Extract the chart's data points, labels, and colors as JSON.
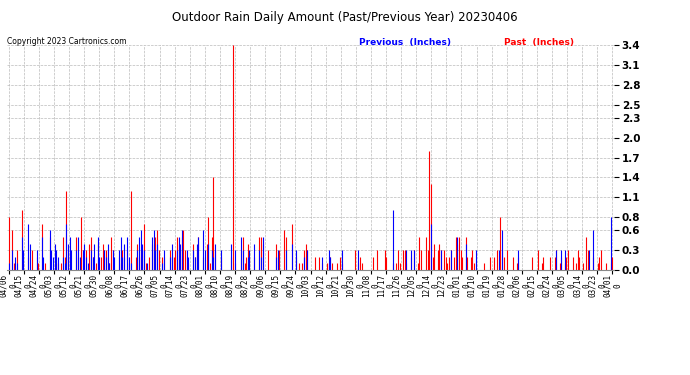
{
  "title": "Outdoor Rain Daily Amount (Past/Previous Year) 20230406",
  "copyright": "Copyright 2023 Cartronics.com",
  "legend_previous": "Previous  (Inches)",
  "legend_past": "Past  (Inches)",
  "yticks": [
    0.0,
    0.3,
    0.6,
    0.8,
    1.1,
    1.4,
    1.7,
    2.0,
    2.3,
    2.5,
    2.8,
    3.1,
    3.4
  ],
  "background_color": "#ffffff",
  "grid_color": "#bbbbbb",
  "previous_color": "#0000ff",
  "past_color": "#ff0000",
  "title_color": "#000000",
  "copyright_color": "#000000",
  "xlabels": [
    "04/06",
    "04/15",
    "04/24",
    "05/03",
    "05/12",
    "05/21",
    "05/30",
    "06/08",
    "06/17",
    "06/26",
    "07/05",
    "07/14",
    "07/23",
    "08/01",
    "08/10",
    "08/19",
    "08/28",
    "09/06",
    "09/15",
    "09/24",
    "10/03",
    "10/12",
    "10/21",
    "10/30",
    "11/08",
    "11/17",
    "11/26",
    "12/05",
    "12/14",
    "12/23",
    "01/01",
    "01/10",
    "01/19",
    "01/28",
    "02/06",
    "02/15",
    "02/24",
    "03/05",
    "03/14",
    "03/23",
    "04/01"
  ],
  "past_data": [
    0.8,
    0.0,
    0.6,
    0.1,
    0.0,
    0.3,
    0.0,
    0.0,
    0.9,
    0.1,
    0.0,
    0.0,
    0.2,
    0.0,
    0.3,
    0.0,
    0.0,
    0.2,
    0.1,
    0.0,
    0.7,
    0.0,
    0.1,
    0.0,
    0.0,
    0.5,
    0.0,
    0.0,
    0.0,
    0.1,
    0.1,
    0.0,
    0.1,
    0.5,
    0.2,
    1.2,
    0.3,
    0.2,
    0.0,
    0.0,
    0.0,
    0.5,
    0.2,
    0.0,
    0.8,
    0.3,
    0.0,
    0.3,
    0.0,
    0.4,
    0.5,
    0.2,
    0.0,
    0.1,
    0.4,
    0.0,
    0.2,
    0.4,
    0.3,
    0.3,
    0.2,
    0.1,
    0.5,
    0.3,
    0.0,
    0.0,
    0.0,
    0.2,
    0.1,
    0.3,
    0.2,
    0.0,
    0.3,
    0.1,
    1.2,
    0.0,
    0.0,
    0.2,
    0.4,
    0.2,
    0.3,
    0.3,
    0.7,
    0.1,
    0.0,
    0.2,
    0.0,
    0.4,
    0.3,
    0.5,
    0.6,
    0.3,
    0.0,
    0.2,
    0.2,
    0.0,
    0.0,
    0.0,
    0.3,
    0.2,
    0.2,
    0.3,
    0.5,
    0.4,
    0.3,
    0.5,
    0.6,
    0.3,
    0.2,
    0.1,
    0.0,
    0.0,
    0.4,
    0.2,
    0.3,
    0.5,
    0.0,
    0.0,
    0.2,
    0.0,
    0.4,
    0.8,
    0.1,
    0.5,
    1.4,
    0.3,
    0.0,
    0.0,
    0.0,
    0.2,
    0.0,
    0.0,
    0.0,
    0.0,
    0.0,
    0.2,
    3.4,
    0.1,
    0.0,
    0.0,
    0.0,
    0.3,
    0.5,
    0.1,
    0.2,
    0.4,
    0.2,
    0.0,
    0.0,
    0.2,
    0.0,
    0.0,
    0.5,
    0.5,
    0.4,
    0.0,
    0.0,
    0.3,
    0.0,
    0.0,
    0.0,
    0.0,
    0.4,
    0.2,
    0.3,
    0.0,
    0.0,
    0.6,
    0.5,
    0.0,
    0.0,
    0.0,
    0.7,
    0.0,
    0.2,
    0.0,
    0.1,
    0.0,
    0.1,
    0.3,
    0.4,
    0.3,
    0.0,
    0.0,
    0.0,
    0.0,
    0.2,
    0.0,
    0.2,
    0.0,
    0.1,
    0.0,
    0.0,
    0.1,
    0.1,
    0.2,
    0.1,
    0.0,
    0.0,
    0.1,
    0.0,
    0.2,
    0.1,
    0.0,
    0.0,
    0.0,
    0.0,
    0.0,
    0.0,
    0.0,
    0.3,
    0.0,
    0.1,
    0.2,
    0.1,
    0.0,
    0.0,
    0.0,
    0.0,
    0.0,
    0.0,
    0.2,
    0.0,
    0.3,
    0.0,
    0.0,
    0.0,
    0.0,
    0.3,
    0.2,
    0.0,
    0.0,
    0.0,
    0.1,
    0.0,
    0.1,
    0.3,
    0.1,
    0.0,
    0.3,
    0.3,
    0.1,
    0.0,
    0.0,
    0.2,
    0.0,
    0.3,
    0.0,
    0.1,
    0.5,
    0.3,
    0.0,
    0.0,
    0.5,
    0.3,
    1.8,
    1.3,
    0.2,
    0.4,
    0.0,
    0.3,
    0.4,
    0.3,
    0.0,
    0.3,
    0.2,
    0.1,
    0.2,
    0.3,
    0.0,
    0.2,
    0.5,
    0.4,
    0.5,
    0.3,
    0.2,
    0.0,
    0.5,
    0.2,
    0.0,
    0.2,
    0.3,
    0.1,
    0.0,
    0.0,
    0.0,
    0.0,
    0.0,
    0.1,
    0.0,
    0.0,
    0.0,
    0.2,
    0.0,
    0.2,
    0.0,
    0.3,
    0.0,
    0.8,
    0.3,
    0.2,
    0.0,
    0.3,
    0.0,
    0.0,
    0.0,
    0.2,
    0.0,
    0.1,
    0.2,
    0.0,
    0.0,
    0.0,
    0.0,
    0.0,
    0.0,
    0.0,
    0.2,
    0.0,
    0.0,
    0.0,
    0.3,
    0.0,
    0.1,
    0.2,
    0.0,
    0.0,
    0.0,
    0.2,
    0.0,
    0.0,
    0.2,
    0.3,
    0.0,
    0.1,
    0.2,
    0.0,
    0.1,
    0.2,
    0.3,
    0.0,
    0.0,
    0.2,
    0.0,
    0.1,
    0.3,
    0.2,
    0.0,
    0.1,
    0.0,
    0.5,
    0.3,
    0.0,
    0.0,
    0.2,
    0.0,
    0.0,
    0.1,
    0.2,
    0.3,
    0.0,
    0.0,
    0.1,
    0.0,
    0.0,
    0.1,
    0.2
  ],
  "previous_data": [
    0.1,
    0.0,
    0.3,
    0.0,
    0.2,
    0.1,
    0.0,
    0.0,
    0.5,
    0.3,
    0.0,
    0.0,
    0.7,
    0.4,
    0.0,
    0.0,
    0.0,
    0.3,
    0.0,
    0.0,
    0.5,
    0.2,
    0.0,
    0.0,
    0.0,
    0.6,
    0.3,
    0.2,
    0.4,
    0.3,
    0.2,
    0.0,
    0.0,
    0.2,
    0.1,
    0.7,
    0.4,
    0.5,
    0.3,
    0.0,
    0.0,
    0.3,
    0.5,
    0.2,
    0.0,
    0.3,
    0.4,
    0.2,
    0.1,
    0.0,
    0.3,
    0.2,
    0.4,
    0.0,
    0.5,
    0.2,
    0.0,
    0.0,
    0.3,
    0.2,
    0.4,
    0.1,
    0.0,
    0.3,
    0.2,
    0.0,
    0.0,
    0.3,
    0.5,
    0.2,
    0.4,
    0.0,
    0.5,
    0.2,
    0.1,
    0.0,
    0.0,
    0.0,
    0.3,
    0.5,
    0.6,
    0.4,
    0.3,
    0.0,
    0.1,
    0.0,
    0.0,
    0.5,
    0.6,
    0.3,
    0.4,
    0.0,
    0.0,
    0.1,
    0.3,
    0.0,
    0.0,
    0.0,
    0.2,
    0.4,
    0.0,
    0.0,
    0.3,
    0.5,
    0.4,
    0.6,
    0.0,
    0.0,
    0.3,
    0.2,
    0.0,
    0.0,
    0.3,
    0.2,
    0.4,
    0.5,
    0.0,
    0.0,
    0.6,
    0.3,
    0.0,
    0.4,
    0.0,
    0.3,
    0.2,
    0.4,
    0.0,
    0.0,
    0.0,
    0.3,
    0.0,
    0.0,
    0.0,
    0.0,
    0.0,
    0.4,
    0.0,
    0.3,
    0.0,
    0.0,
    0.0,
    0.5,
    0.3,
    0.0,
    0.0,
    0.2,
    0.3,
    0.0,
    0.0,
    0.4,
    0.0,
    0.0,
    0.3,
    0.2,
    0.5,
    0.0,
    0.0,
    0.0,
    0.0,
    0.0,
    0.0,
    0.0,
    0.2,
    0.3,
    0.0,
    0.0,
    0.0,
    0.0,
    0.3,
    0.0,
    0.0,
    0.0,
    0.4,
    0.0,
    0.3,
    0.0,
    0.0,
    0.0,
    0.0,
    0.2,
    0.0,
    0.3,
    0.0,
    0.0,
    0.0,
    0.0,
    0.0,
    0.0,
    0.0,
    0.0,
    0.2,
    0.0,
    0.0,
    0.0,
    0.3,
    0.2,
    0.0,
    0.0,
    0.0,
    0.0,
    0.0,
    0.0,
    0.3,
    0.0,
    0.0,
    0.0,
    0.0,
    0.0,
    0.0,
    0.0,
    0.0,
    0.0,
    0.3,
    0.0,
    0.0,
    0.0,
    0.0,
    0.0,
    0.0,
    0.0,
    0.0,
    0.0,
    0.0,
    0.0,
    0.0,
    0.0,
    0.0,
    0.0,
    0.0,
    0.0,
    0.0,
    0.0,
    0.0,
    0.9,
    0.0,
    0.0,
    0.0,
    0.0,
    0.0,
    0.0,
    0.0,
    0.3,
    0.0,
    0.0,
    0.3,
    0.0,
    0.3,
    0.0,
    0.0,
    0.0,
    0.0,
    0.0,
    0.0,
    0.0,
    0.0,
    0.0,
    0.7,
    0.0,
    0.0,
    0.0,
    0.0,
    0.0,
    0.3,
    0.0,
    0.0,
    0.0,
    0.0,
    0.0,
    0.3,
    0.0,
    0.0,
    0.0,
    0.5,
    0.0,
    0.0,
    0.0,
    0.0,
    0.4,
    0.0,
    0.0,
    0.0,
    0.0,
    0.0,
    0.3,
    0.0,
    0.0,
    0.0,
    0.0,
    0.0,
    0.0,
    0.0,
    0.0,
    0.0,
    0.0,
    0.0,
    0.0,
    0.0,
    0.3,
    0.0,
    0.6,
    0.0,
    0.0,
    0.0,
    0.0,
    0.0,
    0.0,
    0.0,
    0.0,
    0.0,
    0.3,
    0.0,
    0.0,
    0.0,
    0.0,
    0.0,
    0.0,
    0.0,
    0.0,
    0.0,
    0.0,
    0.0,
    0.0,
    0.0,
    0.0,
    0.0,
    0.0,
    0.0,
    0.0,
    0.0,
    0.0,
    0.0,
    0.0,
    0.3,
    0.0,
    0.0,
    0.3,
    0.0,
    0.3,
    0.0,
    0.0,
    0.0,
    0.0,
    0.0,
    0.0,
    0.0,
    0.0,
    0.0,
    0.0,
    0.0,
    0.0,
    0.0,
    0.0,
    0.3,
    0.0,
    0.6,
    0.0,
    0.0,
    0.0,
    0.0,
    0.0,
    0.0,
    0.0,
    0.0,
    0.0,
    0.0,
    0.8,
    0.0
  ]
}
